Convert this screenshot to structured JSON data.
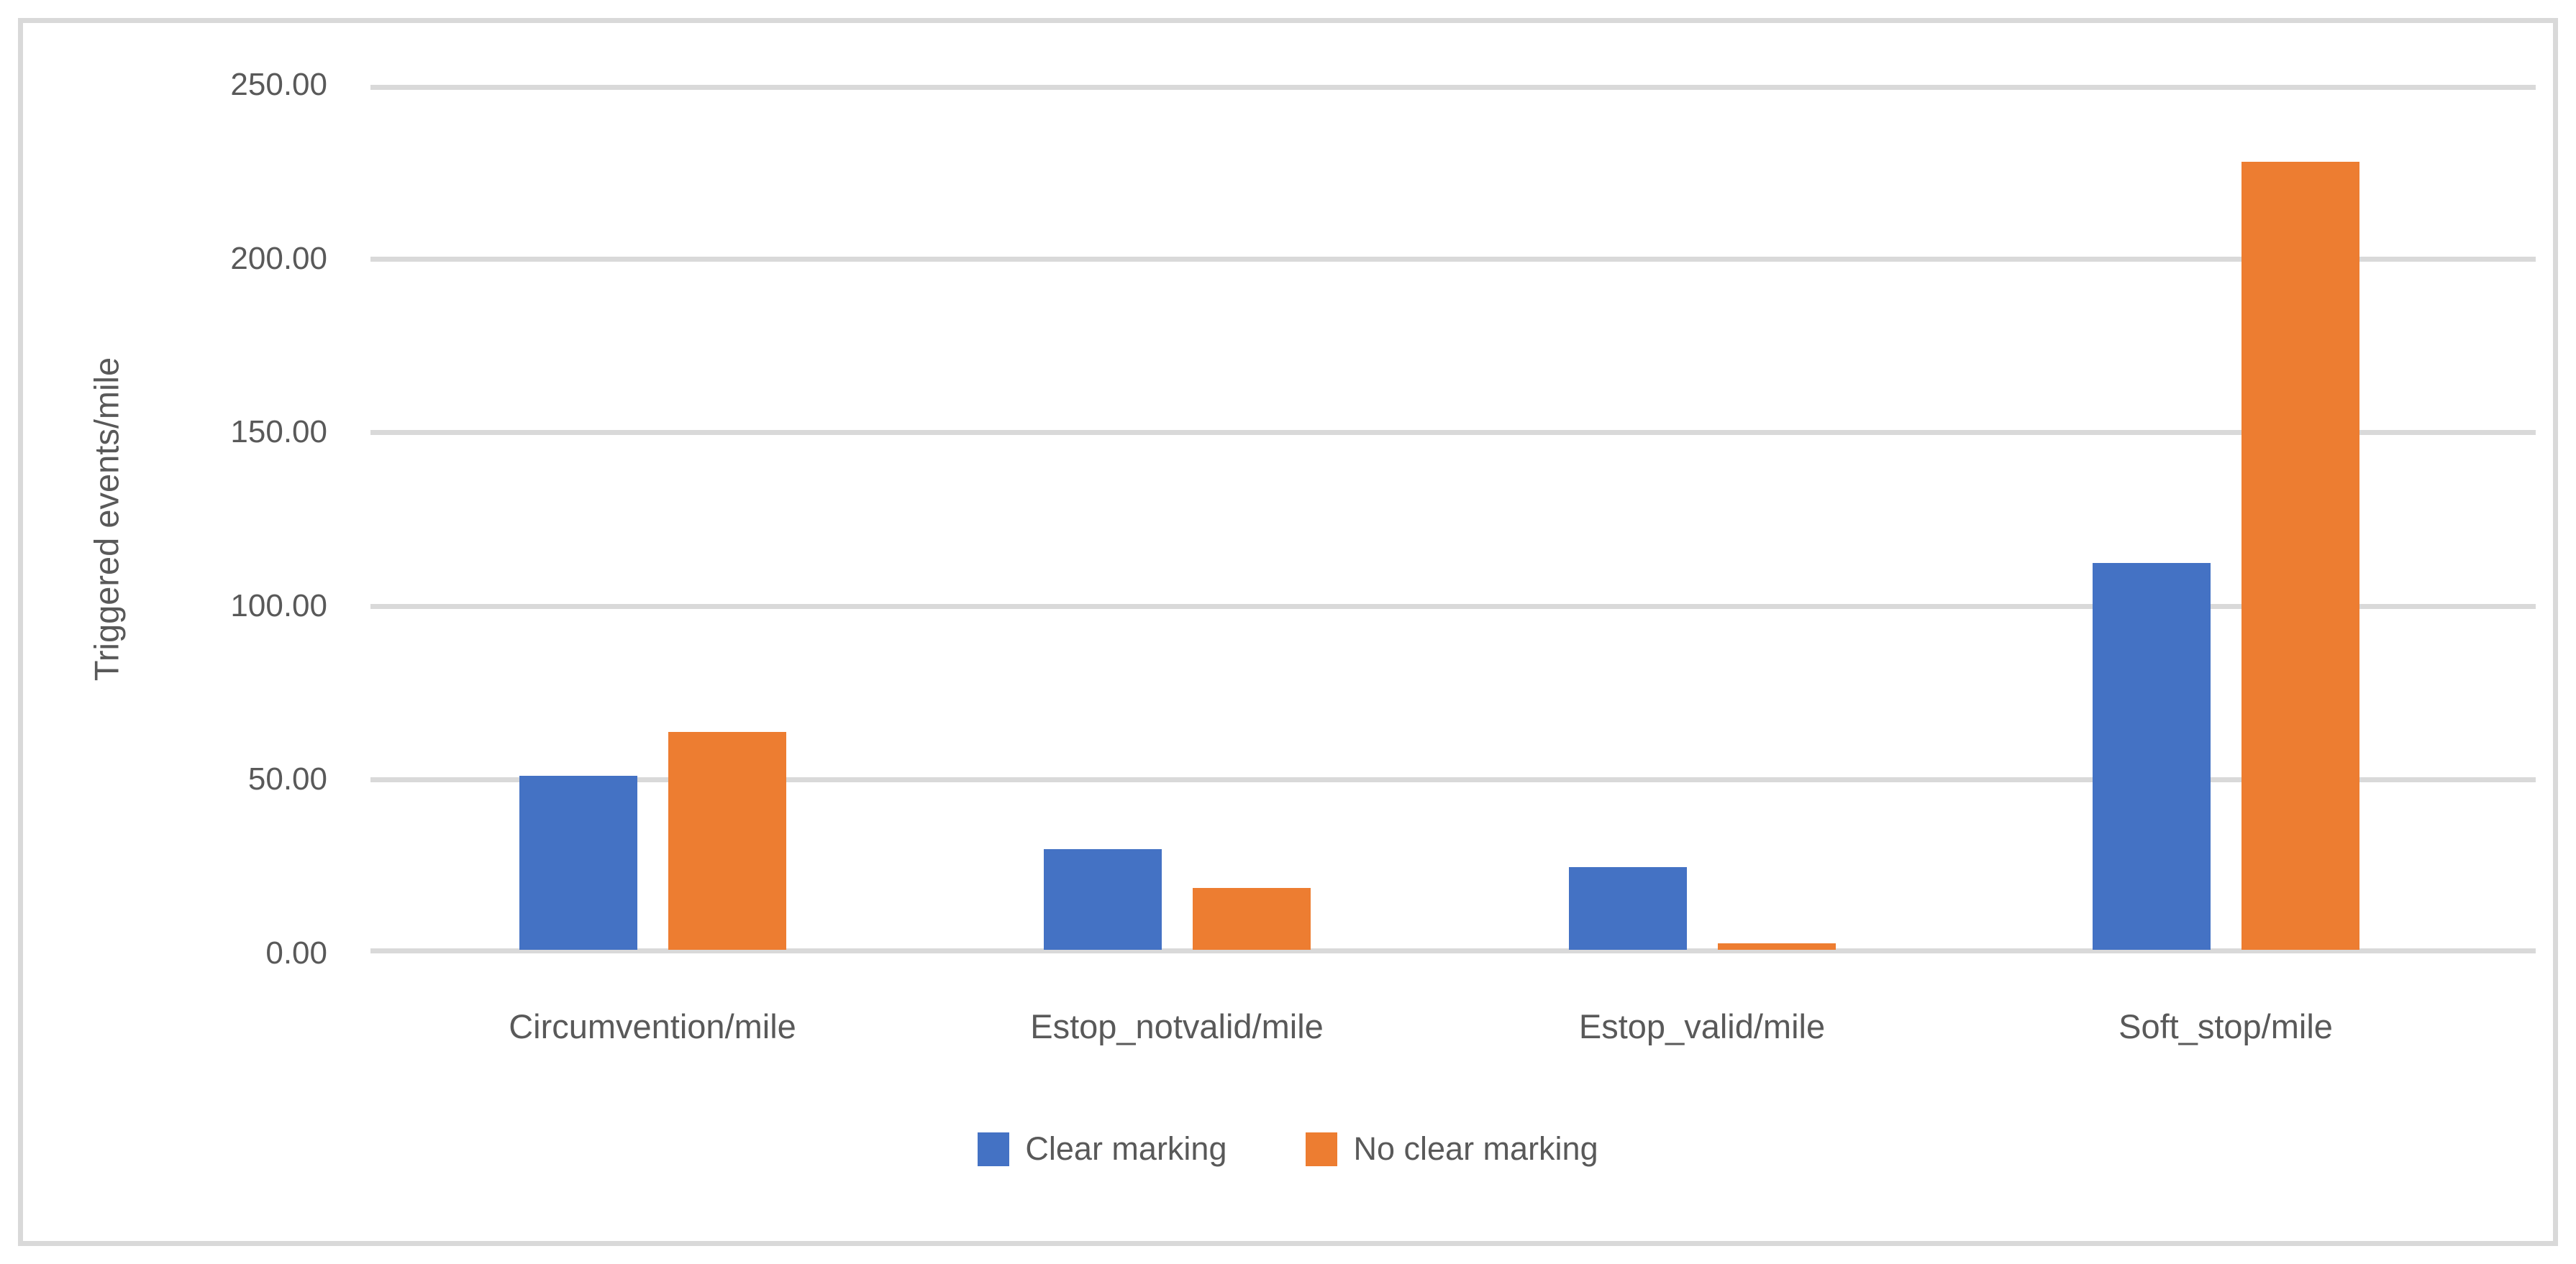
{
  "chart_data": {
    "type": "bar",
    "title": "",
    "categories": [
      "Circumvention/mile",
      "Estop_notvalid/mile",
      "Estop_valid/mile",
      "Soft_stop/mile"
    ],
    "series": [
      {
        "name": "Clear marking",
        "color": "#4472C4",
        "values": [
          50.1,
          29.0,
          23.8,
          111.3
        ]
      },
      {
        "name": "No clear marking",
        "color": "#ED7D31",
        "values": [
          62.7,
          17.8,
          1.9,
          226.8
        ]
      }
    ],
    "xlabel": "",
    "ylabel": "Triggered events/mile",
    "ylim": [
      0,
      250
    ],
    "ytick_step": 50,
    "ytick_labels": [
      "0.00",
      "50.00",
      "100.00",
      "150.00",
      "200.00",
      "250.00"
    ],
    "grid": true,
    "legend_position": "bottom",
    "colors": {
      "text": "#595959",
      "gridline": "#D9D9D9",
      "frame_border": "#D9D9D9",
      "background": "#FFFFFF"
    }
  }
}
